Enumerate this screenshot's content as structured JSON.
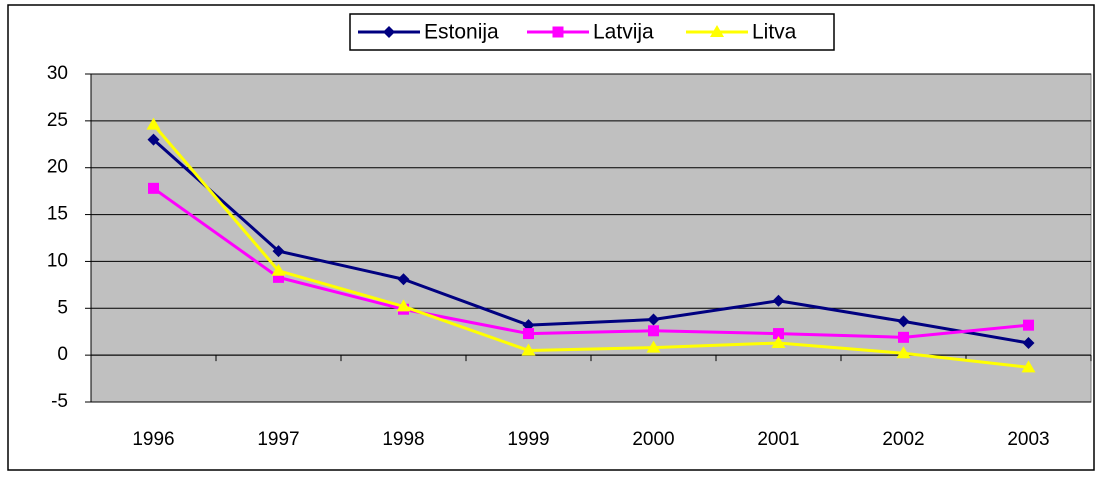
{
  "chart_data": {
    "type": "line",
    "categories": [
      "1996",
      "1997",
      "1998",
      "1999",
      "2000",
      "2001",
      "2002",
      "2003"
    ],
    "series": [
      {
        "name": "Estonija",
        "color": "#000080",
        "marker": "diamond",
        "values": [
          23,
          11.1,
          8.1,
          3.2,
          3.8,
          5.8,
          3.6,
          1.3
        ]
      },
      {
        "name": "Latvija",
        "color": "#ff00ff",
        "marker": "square",
        "values": [
          17.8,
          8.3,
          4.9,
          2.3,
          2.6,
          2.3,
          1.9,
          3.2
        ]
      },
      {
        "name": "Litva",
        "color": "#ffff00",
        "marker": "triangle",
        "values": [
          24.6,
          9,
          5.2,
          0.5,
          0.8,
          1.3,
          0.2,
          -1.3
        ]
      }
    ],
    "ylim": [
      -5,
      30
    ],
    "yticks": [
      -5,
      0,
      5,
      10,
      15,
      20,
      25,
      30
    ],
    "grid": true,
    "legend": "top"
  }
}
